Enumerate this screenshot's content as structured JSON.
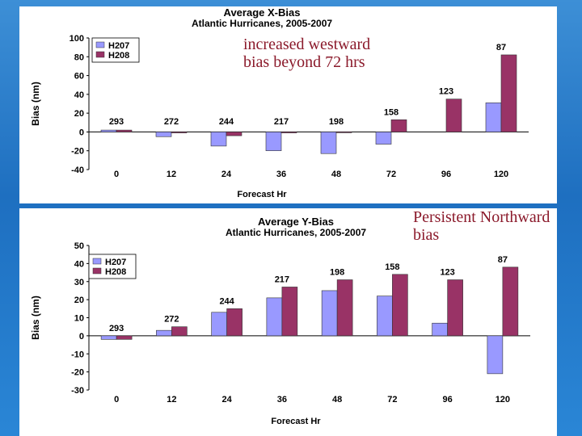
{
  "chart_data": [
    {
      "type": "bar",
      "title": "Average X-Bias",
      "subtitle": "Atlantic Hurricanes, 2005-2007",
      "xlabel": "Forecast Hr",
      "ylabel": "Bias (nm)",
      "ylim": [
        -40,
        100
      ],
      "yticks": [
        -40,
        -20,
        0,
        20,
        40,
        60,
        80,
        100
      ],
      "legend_position": "top-left",
      "categories": [
        "0",
        "12",
        "24",
        "36",
        "48",
        "72",
        "96",
        "120"
      ],
      "series": [
        {
          "name": "H207",
          "color": "#9999ff",
          "values": [
            2,
            -5,
            -15,
            -20,
            -23,
            -13,
            null,
            31
          ]
        },
        {
          "name": "H208",
          "color": "#993366",
          "values": [
            2,
            -1,
            -4,
            -1,
            0,
            13,
            35,
            82
          ]
        }
      ],
      "case_counts": [
        "293",
        "272",
        "244",
        "217",
        "198",
        "158",
        "123",
        "87"
      ]
    },
    {
      "type": "bar",
      "title": "Average Y-Bias",
      "subtitle": "Atlantic Hurricanes, 2005-2007",
      "xlabel": "Forecast Hr",
      "ylabel": "Bias (nm)",
      "ylim": [
        -30,
        50
      ],
      "yticks": [
        -30,
        -20,
        -10,
        0,
        10,
        20,
        30,
        40,
        50
      ],
      "legend_position": "top-left",
      "categories": [
        "0",
        "12",
        "24",
        "36",
        "48",
        "72",
        "96",
        "120"
      ],
      "series": [
        {
          "name": "H207",
          "color": "#9999ff",
          "values": [
            -2,
            3,
            13,
            21,
            25,
            22,
            7,
            -21
          ]
        },
        {
          "name": "H208",
          "color": "#993366",
          "values": [
            -2,
            5,
            15,
            27,
            31,
            34,
            31,
            38
          ]
        }
      ],
      "case_counts": [
        "293",
        "272",
        "244",
        "217",
        "198",
        "158",
        "123",
        "87"
      ]
    }
  ],
  "annotations": {
    "x_bias_note": "increased westward\nbias beyond 72 hrs",
    "y_bias_note": "Persistent Northward\nbias"
  }
}
